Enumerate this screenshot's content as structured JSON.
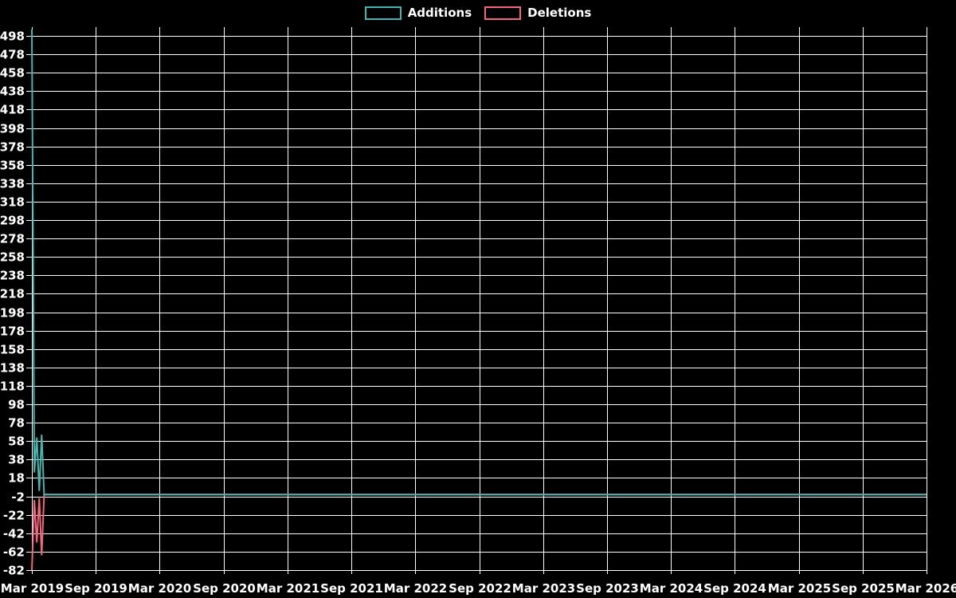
{
  "legend": {
    "items": [
      {
        "label": "Additions",
        "color": "#45b5b0"
      },
      {
        "label": "Deletions",
        "color": "#f4657e"
      }
    ]
  },
  "chart_data": {
    "type": "line",
    "title": "",
    "xlabel": "",
    "ylabel": "",
    "background_color": "#000000",
    "grid": true,
    "grid_color": "#ffffff",
    "legend_position": "top-center",
    "x_axis": {
      "tick_labels": [
        "Mar 2019",
        "Sep 2019",
        "Mar 2020",
        "Sep 2020",
        "Mar 2021",
        "Sep 2021",
        "Mar 2022",
        "Sep 2022",
        "Mar 2023",
        "Sep 2023",
        "Mar 2024",
        "Sep 2024",
        "Mar 2025",
        "Sep 2025",
        "Mar 2026"
      ],
      "weeks_per_tick_interval": 26,
      "total_weeks": 364
    },
    "y_axis": {
      "tick_values": [
        498,
        478,
        458,
        438,
        418,
        398,
        378,
        358,
        338,
        318,
        298,
        278,
        258,
        238,
        218,
        198,
        178,
        158,
        138,
        118,
        98,
        78,
        58,
        38,
        18,
        -2,
        -22,
        -42,
        -62,
        -82
      ],
      "range": [
        -82,
        508
      ]
    },
    "series": [
      {
        "name": "Additions",
        "color": "#45b5b0",
        "early_weekly_values": [
          505,
          24,
          62,
          4,
          65,
          0
        ],
        "remaining_weeks_value": 0,
        "note": "All activity in first weeks of Mar 2019; zero afterwards through Mar 2026"
      },
      {
        "name": "Deletions",
        "color": "#f4657e",
        "early_weekly_values": [
          -82,
          -6,
          -52,
          -4,
          -66,
          0
        ],
        "remaining_weeks_value": 0,
        "note": "All activity in first weeks of Mar 2019; zero afterwards through Mar 2026"
      }
    ]
  }
}
